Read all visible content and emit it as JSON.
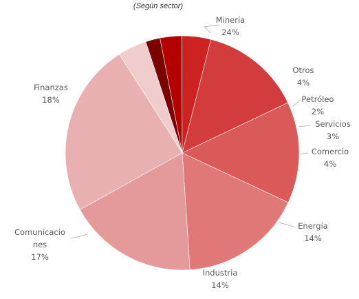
{
  "chart_data": {
    "type": "pie",
    "subtitle": "(Según sector)",
    "slices": [
      {
        "name": "Minería",
        "value": 24,
        "label": "24%",
        "color": "#e8b0b0"
      },
      {
        "name": "Otros",
        "value": 4,
        "label": "4%",
        "color": "#f0cccc"
      },
      {
        "name": "Petróleo",
        "value": 2,
        "label": "2%",
        "color": "#7a0000"
      },
      {
        "name": "Servicios",
        "value": 3,
        "label": "3%",
        "color": "#b30000"
      },
      {
        "name": "Comercio",
        "value": 4,
        "label": "4%",
        "color": "#cc2222"
      },
      {
        "name": "Energía",
        "value": 14,
        "label": "14%",
        "color": "#d23c3c"
      },
      {
        "name": "Industria",
        "value": 14,
        "label": "14%",
        "color": "#da5a5a"
      },
      {
        "name": "Comunicaciones",
        "value": 17,
        "label": "17%",
        "color": "#e07878"
      },
      {
        "name": "Finanzas",
        "value": 18,
        "label": "18%",
        "color": "#e49a9a"
      }
    ]
  }
}
